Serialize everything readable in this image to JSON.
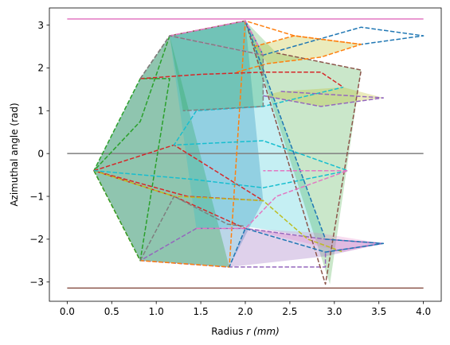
{
  "chart_data": {
    "type": "line",
    "title": "",
    "xlabel": "Radius r (mm)",
    "xlabel_parts": [
      "Radius ",
      "r (mm)"
    ],
    "ylabel": "Azimuthal angle (rad)",
    "xlim": [
      -0.2,
      4.2
    ],
    "ylim": [
      -3.45,
      3.4
    ],
    "xticks": [
      0.0,
      0.5,
      1.0,
      1.5,
      2.0,
      2.5,
      3.0,
      3.5,
      4.0
    ],
    "xtick_labels": [
      "0.0",
      "0.5",
      "1.0",
      "1.5",
      "2.0",
      "2.5",
      "3.0",
      "3.5",
      "4.0"
    ],
    "yticks": [
      -3,
      -2,
      -1,
      0,
      1,
      2,
      3
    ],
    "ytick_labels": [
      "−3",
      "−2",
      "−1",
      "0",
      "1",
      "2",
      "3"
    ],
    "grid": false,
    "legend": false,
    "reference_lines": [
      {
        "y": 3.14159,
        "x": [
          0,
          4
        ],
        "color": "#e377c2"
      },
      {
        "y": 0,
        "x": [
          0,
          4
        ],
        "color": "#7f7f7f"
      },
      {
        "y": -3.14159,
        "x": [
          0,
          4
        ],
        "color": "#8c564b"
      }
    ],
    "polygons": [
      {
        "fill": "#1f77b4",
        "opacity": 0.3,
        "points": [
          [
            0.3,
            -0.4
          ],
          [
            0.82,
            -2.5
          ],
          [
            1.82,
            -2.65
          ],
          [
            2.2,
            -1.1
          ],
          [
            2.0,
            3.1
          ],
          [
            1.15,
            2.75
          ],
          [
            0.82,
            1.75
          ]
        ]
      },
      {
        "fill": "#2ca02c",
        "opacity": 0.3,
        "points": [
          [
            0.3,
            -0.4
          ],
          [
            0.82,
            -2.5
          ],
          [
            1.82,
            -2.65
          ],
          [
            1.15,
            2.75
          ],
          [
            0.82,
            1.75
          ]
        ]
      },
      {
        "fill": "#2ca02c",
        "opacity": 0.3,
        "points": [
          [
            1.15,
            2.75
          ],
          [
            2.0,
            3.1
          ],
          [
            2.2,
            2.3
          ],
          [
            2.2,
            1.1
          ],
          [
            1.3,
            1.0
          ]
        ]
      },
      {
        "fill": "#17becf",
        "opacity": 0.25,
        "points": [
          [
            1.15,
            2.75
          ],
          [
            2.0,
            3.1
          ],
          [
            2.9,
            -2.0
          ],
          [
            2.0,
            -1.7
          ],
          [
            1.45,
            -1.75
          ]
        ]
      },
      {
        "fill": "#2ca02c",
        "opacity": 0.25,
        "points": [
          [
            2.0,
            3.1
          ],
          [
            2.35,
            2.35
          ],
          [
            3.3,
            1.95
          ],
          [
            2.95,
            -3.05
          ]
        ]
      },
      {
        "fill": "#bcbd22",
        "opacity": 0.3,
        "points": [
          [
            2.1,
            2.5
          ],
          [
            2.55,
            2.75
          ],
          [
            3.3,
            2.55
          ],
          [
            2.85,
            2.25
          ],
          [
            2.25,
            2.1
          ]
        ]
      },
      {
        "fill": "#bcbd22",
        "opacity": 0.3,
        "points": [
          [
            2.2,
            1.35
          ],
          [
            2.85,
            1.1
          ],
          [
            3.55,
            1.3
          ],
          [
            3.1,
            1.55
          ],
          [
            2.4,
            1.45
          ]
        ]
      },
      {
        "fill": "#9467bd",
        "opacity": 0.3,
        "points": [
          [
            1.82,
            -2.65
          ],
          [
            2.9,
            -2.4
          ],
          [
            3.55,
            -2.1
          ],
          [
            2.9,
            -2.0
          ],
          [
            2.0,
            -1.75
          ]
        ]
      },
      {
        "fill": "#e377c2",
        "opacity": 0.25,
        "points": [
          [
            2.0,
            -1.75
          ],
          [
            3.1,
            -2.3
          ],
          [
            3.55,
            -2.1
          ],
          [
            2.8,
            -1.85
          ]
        ]
      }
    ],
    "series": [
      {
        "color": "#9467bd",
        "dashed": true,
        "points": [
          [
            0.82,
            -2.5
          ],
          [
            1.8,
            -2.65
          ],
          [
            2.9,
            -2.65
          ],
          [
            2.9,
            -2.3
          ],
          [
            3.55,
            -2.1
          ],
          [
            2.9,
            -2.0
          ],
          [
            2.0,
            -1.75
          ],
          [
            1.45,
            -1.75
          ],
          [
            0.82,
            -2.5
          ]
        ]
      },
      {
        "color": "#ff7f0e",
        "dashed": true,
        "points": [
          [
            0.3,
            -0.4
          ],
          [
            0.82,
            -2.5
          ],
          [
            1.82,
            -2.65
          ],
          [
            2.0,
            3.1
          ],
          [
            2.55,
            2.75
          ],
          [
            3.3,
            2.55
          ]
        ]
      },
      {
        "color": "#2ca02c",
        "dashed": true,
        "points": [
          [
            0.3,
            -0.4
          ],
          [
            0.82,
            -2.5
          ],
          [
            1.15,
            1.75
          ],
          [
            0.82,
            1.75
          ],
          [
            0.3,
            -0.4
          ],
          [
            0.82,
            0.75
          ],
          [
            1.15,
            2.75
          ]
        ]
      },
      {
        "color": "#d62728",
        "dashed": true,
        "points": [
          [
            0.3,
            -0.4
          ],
          [
            1.2,
            0.2
          ],
          [
            2.2,
            -1.1
          ],
          [
            1.35,
            -1.0
          ],
          [
            0.3,
            -0.4
          ],
          [
            1.2,
            -1.0
          ],
          [
            2.0,
            -1.75
          ]
        ]
      },
      {
        "color": "#bcbd22",
        "dashed": true,
        "points": [
          [
            0.3,
            -0.4
          ],
          [
            1.2,
            -1.0
          ],
          [
            2.2,
            -1.1
          ],
          [
            2.7,
            -2.0
          ],
          [
            3.1,
            -2.3
          ]
        ]
      },
      {
        "color": "#17becf",
        "dashed": true,
        "points": [
          [
            0.3,
            -0.4
          ],
          [
            1.4,
            -0.6
          ],
          [
            2.2,
            -0.8
          ],
          [
            3.15,
            -0.4
          ],
          [
            2.2,
            0.3
          ],
          [
            1.2,
            0.2
          ],
          [
            1.45,
            1.0
          ],
          [
            2.2,
            1.1
          ],
          [
            3.1,
            1.55
          ]
        ]
      },
      {
        "color": "#8c564b",
        "dashed": true,
        "points": [
          [
            0.82,
            1.75
          ],
          [
            1.15,
            2.75
          ],
          [
            2.0,
            3.1
          ],
          [
            2.9,
            -3.05
          ],
          [
            3.3,
            1.95
          ],
          [
            2.35,
            2.35
          ]
        ]
      },
      {
        "color": "#1f77b4",
        "dashed": true,
        "points": [
          [
            2.0,
            3.1
          ],
          [
            2.9,
            -2.0
          ],
          [
            3.55,
            -2.1
          ],
          [
            2.9,
            -2.3
          ],
          [
            2.0,
            -1.75
          ],
          [
            1.82,
            -2.65
          ]
        ]
      },
      {
        "color": "#1f77b4",
        "dashed": true,
        "points": [
          [
            2.0,
            3.1
          ],
          [
            2.2,
            2.3
          ],
          [
            3.3,
            2.95
          ],
          [
            4.0,
            2.75
          ],
          [
            3.3,
            2.55
          ]
        ]
      },
      {
        "color": "#ff7f0e",
        "dashed": true,
        "points": [
          [
            2.1,
            2.5
          ],
          [
            2.55,
            2.75
          ],
          [
            3.3,
            2.55
          ],
          [
            2.85,
            2.25
          ],
          [
            2.25,
            2.1
          ],
          [
            1.9,
            1.9
          ]
        ]
      },
      {
        "color": "#e377c2",
        "dashed": true,
        "points": [
          [
            1.15,
            2.75
          ],
          [
            2.0,
            3.1
          ],
          [
            2.2,
            2.3
          ],
          [
            1.15,
            2.75
          ]
        ]
      },
      {
        "color": "#d62728",
        "dashed": true,
        "points": [
          [
            0.82,
            1.75
          ],
          [
            1.5,
            1.85
          ],
          [
            2.2,
            1.9
          ],
          [
            2.85,
            1.9
          ],
          [
            3.1,
            1.55
          ]
        ]
      },
      {
        "color": "#7f7f7f",
        "dashed": true,
        "points": [
          [
            0.82,
            1.75
          ],
          [
            1.15,
            2.75
          ],
          [
            2.2,
            2.3
          ],
          [
            2.2,
            1.1
          ],
          [
            1.3,
            1.0
          ]
        ]
      },
      {
        "color": "#9467bd",
        "dashed": true,
        "points": [
          [
            2.2,
            1.35
          ],
          [
            2.85,
            1.1
          ],
          [
            3.55,
            1.3
          ],
          [
            2.4,
            1.45
          ]
        ]
      },
      {
        "color": "#e377c2",
        "dashed": true,
        "points": [
          [
            1.45,
            -1.75
          ],
          [
            2.0,
            -1.75
          ],
          [
            2.35,
            -1.0
          ],
          [
            3.15,
            -0.4
          ],
          [
            2.2,
            -0.4
          ]
        ]
      },
      {
        "color": "#7f7f7f",
        "dashed": true,
        "points": [
          [
            0.82,
            -2.5
          ],
          [
            1.2,
            -1.0
          ],
          [
            1.8,
            -1.65
          ],
          [
            2.0,
            -1.7
          ]
        ]
      }
    ]
  }
}
